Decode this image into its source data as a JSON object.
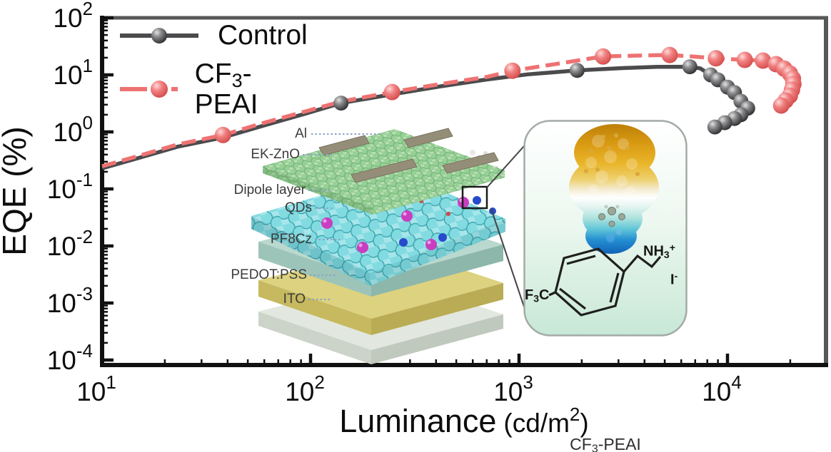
{
  "axes": {
    "ylabel": "EQE (%)",
    "xlabel_main": "Luminance",
    "xlabel_unit_pre": "(cd/m",
    "xlabel_unit_sup": "2",
    "xlabel_unit_post": ")",
    "tick_base": "10",
    "x_tick_exponents": [
      "1",
      "2",
      "3",
      "4"
    ],
    "y_tick_exponents": [
      "2",
      "1",
      "0",
      "-1",
      "-2",
      "-3",
      "-4"
    ]
  },
  "legend": {
    "position": "upper-left",
    "series": [
      {
        "label": "Control",
        "color": "#4b4b4d",
        "line": "solid"
      },
      {
        "label_pre": "CF",
        "label_sub": "3",
        "label_post": "-PEAI",
        "color": "#ee7272",
        "line": "dashed"
      }
    ]
  },
  "chart_data": {
    "type": "line",
    "title": "",
    "xlabel": "Luminance (cd/m^2)",
    "ylabel": "EQE (%)",
    "x_scale": "log",
    "y_scale": "log",
    "xlim": [
      10,
      30000
    ],
    "ylim": [
      0.0001,
      100
    ],
    "grid": false,
    "legend_position": "upper-left",
    "series": [
      {
        "name": "Control",
        "color": "#4b4b4d",
        "style": "solid",
        "marker": "sphere",
        "peak_eqe_percent": 13.9,
        "points": [
          [
            10,
            0.23
          ],
          [
            15,
            0.35
          ],
          [
            23,
            0.55
          ],
          [
            38,
            0.8
          ],
          [
            60,
            1.3
          ],
          [
            95,
            2.1
          ],
          [
            140,
            3.2
          ],
          [
            250,
            4.6
          ],
          [
            420,
            6.3
          ],
          [
            700,
            8.3
          ],
          [
            1100,
            10.2
          ],
          [
            1900,
            12.0
          ],
          [
            3200,
            13.2
          ],
          [
            4600,
            13.8
          ],
          [
            6600,
            13.9
          ],
          [
            7400,
            13.0
          ],
          [
            8300,
            10.0
          ],
          [
            9000,
            8.2
          ],
          [
            10000,
            6.1
          ],
          [
            10800,
            4.9
          ],
          [
            11600,
            3.45
          ],
          [
            12500,
            2.6
          ],
          [
            11600,
            2.0
          ],
          [
            10800,
            1.72
          ],
          [
            9700,
            1.45
          ],
          [
            8700,
            1.22
          ]
        ],
        "marker_points": [
          [
            140,
            3.2
          ],
          [
            1900,
            12.0
          ],
          [
            6600,
            13.9
          ],
          [
            8300,
            10.0
          ],
          [
            9000,
            8.2
          ],
          [
            10000,
            6.1
          ],
          [
            10800,
            4.9
          ],
          [
            11600,
            3.45
          ],
          [
            12500,
            2.6
          ],
          [
            11600,
            2.0
          ],
          [
            10800,
            1.72
          ],
          [
            9700,
            1.45
          ],
          [
            8700,
            1.22
          ]
        ]
      },
      {
        "name": "CF3-PEAI",
        "color": "#ee7272",
        "style": "dashed",
        "marker": "sphere",
        "peak_eqe_percent": 22.3,
        "points": [
          [
            10,
            0.25
          ],
          [
            15,
            0.38
          ],
          [
            23,
            0.6
          ],
          [
            38,
            0.88
          ],
          [
            60,
            1.45
          ],
          [
            95,
            2.3
          ],
          [
            140,
            3.4
          ],
          [
            246,
            5.0
          ],
          [
            420,
            6.9
          ],
          [
            700,
            9.2
          ],
          [
            930,
            11.8
          ],
          [
            1500,
            15.5
          ],
          [
            2530,
            21.0
          ],
          [
            3800,
            21.8
          ],
          [
            5280,
            22.3
          ],
          [
            6800,
            21.0
          ],
          [
            8800,
            19.5
          ],
          [
            12100,
            18.3
          ],
          [
            14800,
            17.8
          ],
          [
            17100,
            15.4
          ],
          [
            18700,
            12.9
          ],
          [
            19900,
            10.6
          ],
          [
            20600,
            8.6
          ],
          [
            20700,
            6.9
          ],
          [
            20400,
            5.5
          ],
          [
            19900,
            4.3
          ],
          [
            19000,
            3.55
          ],
          [
            18100,
            2.9
          ]
        ],
        "marker_points": [
          [
            38,
            0.88
          ],
          [
            246,
            5.0
          ],
          [
            930,
            11.8
          ],
          [
            2530,
            21.0
          ],
          [
            5280,
            22.3
          ],
          [
            8800,
            19.5
          ],
          [
            12100,
            18.3
          ],
          [
            14800,
            17.8
          ],
          [
            17100,
            15.4
          ],
          [
            18700,
            12.9
          ],
          [
            19900,
            10.6
          ],
          [
            20600,
            8.6
          ],
          [
            20700,
            6.9
          ],
          [
            20400,
            5.5
          ],
          [
            19900,
            4.3
          ],
          [
            19000,
            3.55
          ],
          [
            18100,
            2.9
          ]
        ]
      }
    ]
  },
  "inset_device": {
    "labels": [
      "Al",
      "EK-ZnO",
      "Dipole layer",
      "QDs",
      "PF8Cz",
      "PEDOT:PSS",
      "ITO"
    ]
  },
  "inset_molecule": {
    "nh3_pre": "NH",
    "nh3_sub": "3",
    "nh3_sup": "+",
    "iodide_pre": "I",
    "iodide_sup": "-",
    "f3c_pre": "F",
    "f3c_sub": "3",
    "f3c_post": "C",
    "caption_pre": "CF",
    "caption_sub": "3",
    "caption_post": "-PEAI"
  },
  "colors": {
    "control": "#4b4b4d",
    "cf3_peai": "#ee7272",
    "axis": "#111111",
    "box_spine": "#57575a",
    "leader_dots": "#8ba3c7"
  }
}
